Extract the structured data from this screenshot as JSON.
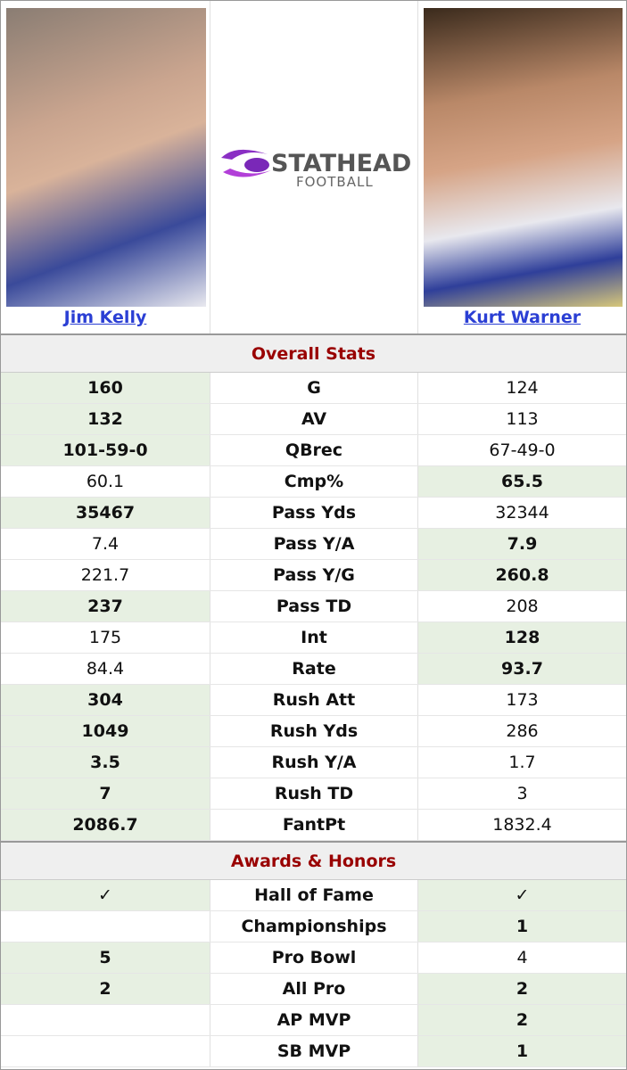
{
  "header": {
    "left_player": "Jim Kelly",
    "logo": {
      "brand": "STATHEAD",
      "sub": "FOOTBALL"
    },
    "right_player": "Kurt Warner"
  },
  "sections": [
    {
      "title": "Overall Stats",
      "rows": [
        {
          "left": "160",
          "stat": "G",
          "right": "124",
          "winner": "left"
        },
        {
          "left": "132",
          "stat": "AV",
          "right": "113",
          "winner": "left"
        },
        {
          "left": "101-59-0",
          "stat": "QBrec",
          "right": "67-49-0",
          "winner": "left"
        },
        {
          "left": "60.1",
          "stat": "Cmp%",
          "right": "65.5",
          "winner": "right"
        },
        {
          "left": "35467",
          "stat": "Pass Yds",
          "right": "32344",
          "winner": "left"
        },
        {
          "left": "7.4",
          "stat": "Pass Y/A",
          "right": "7.9",
          "winner": "right"
        },
        {
          "left": "221.7",
          "stat": "Pass Y/G",
          "right": "260.8",
          "winner": "right"
        },
        {
          "left": "237",
          "stat": "Pass TD",
          "right": "208",
          "winner": "left"
        },
        {
          "left": "175",
          "stat": "Int",
          "right": "128",
          "winner": "right"
        },
        {
          "left": "84.4",
          "stat": "Rate",
          "right": "93.7",
          "winner": "right"
        },
        {
          "left": "304",
          "stat": "Rush Att",
          "right": "173",
          "winner": "left"
        },
        {
          "left": "1049",
          "stat": "Rush Yds",
          "right": "286",
          "winner": "left"
        },
        {
          "left": "3.5",
          "stat": "Rush Y/A",
          "right": "1.7",
          "winner": "left"
        },
        {
          "left": "7",
          "stat": "Rush TD",
          "right": "3",
          "winner": "left"
        },
        {
          "left": "2086.7",
          "stat": "FantPt",
          "right": "1832.4",
          "winner": "left"
        }
      ]
    },
    {
      "title": "Awards & Honors",
      "rows": [
        {
          "left": "✓",
          "stat": "Hall of Fame",
          "right": "✓",
          "winner": "both"
        },
        {
          "stat": "Championships",
          "right": "1",
          "winner": "right"
        },
        {
          "left": "5",
          "stat": "Pro Bowl",
          "right": "4",
          "winner": "left"
        },
        {
          "left": "2",
          "stat": "All Pro",
          "right": "2",
          "winner": "both"
        },
        {
          "stat": "AP MVP",
          "right": "2",
          "winner": "right"
        },
        {
          "stat": "SB MVP",
          "right": "1",
          "winner": "right"
        }
      ]
    }
  ]
}
